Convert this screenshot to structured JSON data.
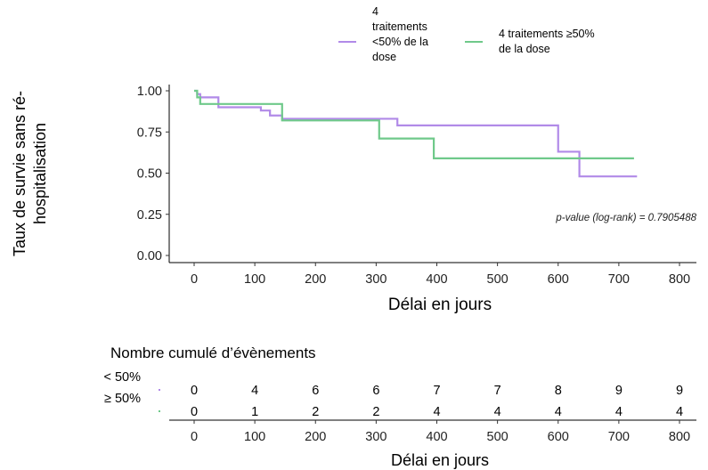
{
  "chart_data": [
    {
      "type": "line",
      "step": true,
      "ylabel_lines": [
        "Taux de survie sans ré-",
        "hospitalisation"
      ],
      "xlabel": "Délai en jours",
      "xlim": [
        0,
        800
      ],
      "ylim": [
        0,
        1
      ],
      "x_ticks": [
        "0",
        "100",
        "200",
        "300",
        "400",
        "500",
        "600",
        "700",
        "800"
      ],
      "y_ticks": [
        "0.00",
        "0.25",
        "0.50",
        "0.75",
        "1.00"
      ],
      "grid": false,
      "legend_position": "top",
      "legend": [
        {
          "label_lines": [
            "4",
            "traitements",
            "<50% de la",
            "dose"
          ],
          "color": "#b18ae8"
        },
        {
          "label_lines": [
            "4 traitements ≥50%",
            "de la dose"
          ],
          "color": "#6fc98a"
        }
      ],
      "annotation": "p-value (log-rank) = 0.7905488",
      "series": [
        {
          "color": "#b18ae8",
          "x": [
            0,
            5,
            10,
            40,
            110,
            125,
            145,
            335,
            600,
            635,
            730
          ],
          "y": [
            1.0,
            0.98,
            0.96,
            0.9,
            0.88,
            0.85,
            0.83,
            0.79,
            0.63,
            0.48,
            0.48
          ]
        },
        {
          "color": "#6fc98a",
          "x": [
            0,
            5,
            10,
            145,
            305,
            395,
            725
          ],
          "y": [
            1.0,
            0.96,
            0.92,
            0.82,
            0.71,
            0.59,
            0.59
          ]
        }
      ]
    },
    {
      "type": "table",
      "title": "Nombre cumulé d’évènements",
      "xlabel": "Délai en jours",
      "x_ticks": [
        "0",
        "100",
        "200",
        "300",
        "400",
        "500",
        "600",
        "700",
        "800"
      ],
      "rows": [
        {
          "label": "< 50%",
          "color": "#b18ae8",
          "values": [
            "0",
            "4",
            "6",
            "6",
            "7",
            "7",
            "8",
            "9",
            "9"
          ]
        },
        {
          "label": "≥ 50%",
          "color": "#6fc98a",
          "values": [
            "0",
            "1",
            "2",
            "2",
            "4",
            "4",
            "4",
            "4",
            "4"
          ]
        }
      ]
    }
  ]
}
